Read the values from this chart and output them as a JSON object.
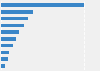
{
  "values": [
    100,
    38,
    33,
    28,
    22,
    18,
    14,
    10,
    8,
    5
  ],
  "bar_color": "#3a86c8",
  "background_color": "#f0f0f0",
  "grid_color": "#ffffff",
  "n_bars": 10,
  "xlim": [
    0,
    118
  ]
}
